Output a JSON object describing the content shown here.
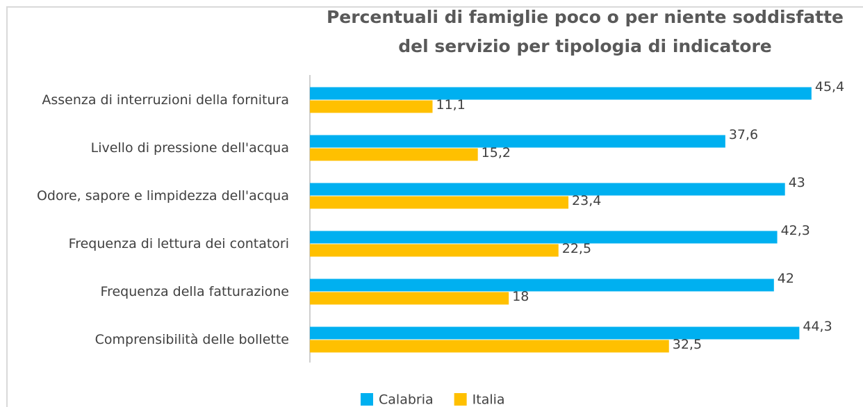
{
  "chart_data": {
    "type": "hbar",
    "title": "Percentuali di famiglie poco o per niente soddisfatte del servizio per tipologia di indicatore",
    "categories": [
      "Assenza di interruzioni della fornitura",
      "Livello di pressione dell'acqua",
      "Odore, sapore e limpidezza dell'acqua",
      "Frequenza di lettura dei contatori",
      "Frequenza della fatturazione",
      "Comprensibilità delle bollette"
    ],
    "series": [
      {
        "name": "Calabria",
        "color": "#00b0f0",
        "values": [
          45.4,
          37.6,
          43,
          42.3,
          42,
          44.3
        ],
        "value_labels": [
          "45,4",
          "37,6",
          "43",
          "42,3",
          "42",
          "44,3"
        ]
      },
      {
        "name": "Italia",
        "color": "#ffc000",
        "values": [
          11.1,
          15.2,
          23.4,
          22.5,
          18,
          32.5
        ],
        "value_labels": [
          "11,1",
          "15,2",
          "23,4",
          "22,5",
          "18",
          "32,5"
        ]
      }
    ],
    "xlim": [
      0,
      50
    ],
    "legend": "bottom"
  }
}
